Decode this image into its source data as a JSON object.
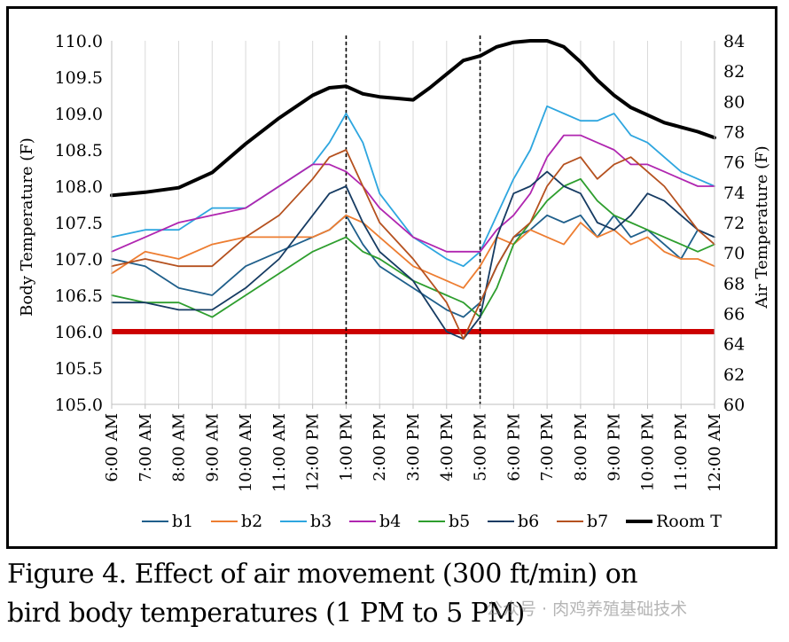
{
  "caption": {
    "line1": "Figure 4.  Effect of air movement (300 ft/min) on",
    "line2": "bird body temperatures (1 PM to 5 PM)"
  },
  "watermark": "公众号 · 肉鸡养殖基础技术",
  "chart_data": {
    "type": "line",
    "xlabel": "",
    "ylabel": "Body Temperature (F)",
    "y2label": "Air Temperature (F)",
    "x_ticks": [
      "6:00 AM",
      "7:00 AM",
      "8:00 AM",
      "9:00 AM",
      "10:00 AM",
      "11:00 AM",
      "12:00 PM",
      "1:00 PM",
      "2:00 PM",
      "3:00 PM",
      "4:00 PM",
      "5:00 PM",
      "6:00 PM",
      "7:00 PM",
      "8:00 PM",
      "9:00 PM",
      "10:00 PM",
      "11:00 PM",
      "12:00 AM"
    ],
    "x_hours": [
      6,
      7,
      8,
      9,
      10,
      11,
      12,
      13,
      14,
      15,
      16,
      17,
      18,
      19,
      20,
      21,
      22,
      23,
      24
    ],
    "ylim": [
      105.0,
      110.0
    ],
    "y_ticks": [
      "105.0",
      "105.5",
      "106.0",
      "106.5",
      "107.0",
      "107.5",
      "108.0",
      "108.5",
      "109.0",
      "109.5",
      "110.0"
    ],
    "y2lim": [
      60,
      84
    ],
    "y2_ticks": [
      "60",
      "62",
      "64",
      "66",
      "68",
      "70",
      "72",
      "74",
      "76",
      "78",
      "80",
      "82",
      "84"
    ],
    "grid": "vertical",
    "reference_line": {
      "value": 106.0,
      "color": "#cc0000"
    },
    "event_lines_hours": [
      13,
      17
    ],
    "series": [
      {
        "name": "b1",
        "color": "#1f5f8b",
        "axis": "left",
        "x": [
          6,
          7,
          8,
          9,
          10,
          11,
          12,
          12.5,
          13,
          13.5,
          14,
          15,
          16,
          16.5,
          17,
          17.5,
          18,
          18.5,
          19,
          19.5,
          20,
          20.5,
          21,
          21.5,
          22,
          22.5,
          23,
          23.5,
          24
        ],
        "y": [
          107.0,
          106.9,
          106.6,
          106.5,
          106.9,
          107.1,
          107.3,
          107.4,
          107.6,
          107.2,
          106.9,
          106.6,
          106.3,
          106.2,
          106.4,
          106.9,
          107.3,
          107.4,
          107.6,
          107.5,
          107.6,
          107.3,
          107.6,
          107.3,
          107.4,
          107.2,
          107.0,
          107.4,
          107.3
        ]
      },
      {
        "name": "b2",
        "color": "#ed7d31",
        "axis": "left",
        "x": [
          6,
          7,
          8,
          9,
          10,
          11,
          12,
          12.5,
          13,
          13.5,
          14,
          15,
          16,
          16.5,
          17,
          17.5,
          18,
          18.5,
          19,
          19.5,
          20,
          20.5,
          21,
          21.5,
          22,
          22.5,
          23,
          23.5,
          24
        ],
        "y": [
          106.8,
          107.1,
          107.0,
          107.2,
          107.3,
          107.3,
          107.3,
          107.4,
          107.6,
          107.5,
          107.3,
          106.9,
          106.7,
          106.6,
          106.9,
          107.3,
          107.2,
          107.4,
          107.3,
          107.2,
          107.5,
          107.3,
          107.4,
          107.2,
          107.3,
          107.1,
          107.0,
          107.0,
          106.9
        ]
      },
      {
        "name": "b3",
        "color": "#2ea6df",
        "axis": "left",
        "x": [
          6,
          7,
          8,
          9,
          10,
          11,
          12,
          12.5,
          13,
          13.5,
          14,
          15,
          16,
          16.5,
          17,
          17.5,
          18,
          18.5,
          19,
          19.5,
          20,
          20.5,
          21,
          21.5,
          22,
          22.5,
          23,
          23.5,
          24
        ],
        "y": [
          107.3,
          107.4,
          107.4,
          107.7,
          107.7,
          108.0,
          108.3,
          108.6,
          109.0,
          108.6,
          107.9,
          107.3,
          107.0,
          106.9,
          107.1,
          107.6,
          108.1,
          108.5,
          109.1,
          109.0,
          108.9,
          108.9,
          109.0,
          108.7,
          108.6,
          108.4,
          108.2,
          108.1,
          108.0
        ]
      },
      {
        "name": "b4",
        "color": "#b026b0",
        "axis": "left",
        "x": [
          6,
          7,
          8,
          9,
          10,
          11,
          12,
          12.5,
          13,
          13.5,
          14,
          15,
          16,
          16.5,
          17,
          17.5,
          18,
          18.5,
          19,
          19.5,
          20,
          20.5,
          21,
          21.5,
          22,
          22.5,
          23,
          23.5,
          24
        ],
        "y": [
          107.1,
          107.3,
          107.5,
          107.6,
          107.7,
          108.0,
          108.3,
          108.3,
          108.2,
          108.0,
          107.7,
          107.3,
          107.1,
          107.1,
          107.1,
          107.4,
          107.6,
          107.9,
          108.4,
          108.7,
          108.7,
          108.6,
          108.5,
          108.3,
          108.3,
          108.2,
          108.1,
          108.0,
          108.0
        ]
      },
      {
        "name": "b5",
        "color": "#2e9e2e",
        "axis": "left",
        "x": [
          6,
          7,
          8,
          9,
          10,
          11,
          12,
          12.5,
          13,
          13.5,
          14,
          15,
          16,
          16.5,
          17,
          17.5,
          18,
          18.5,
          19,
          19.5,
          20,
          20.5,
          21,
          21.5,
          22,
          22.5,
          23,
          23.5,
          24
        ],
        "y": [
          106.5,
          106.4,
          106.4,
          106.2,
          106.5,
          106.8,
          107.1,
          107.2,
          107.3,
          107.1,
          107.0,
          106.7,
          106.5,
          106.4,
          106.2,
          106.6,
          107.2,
          107.5,
          107.8,
          108.0,
          108.1,
          107.8,
          107.6,
          107.5,
          107.4,
          107.3,
          107.2,
          107.1,
          107.2
        ]
      },
      {
        "name": "b6",
        "color": "#163b62",
        "axis": "left",
        "x": [
          6,
          7,
          8,
          9,
          10,
          11,
          12,
          12.5,
          13,
          13.5,
          14,
          15,
          16,
          16.5,
          17,
          17.5,
          18,
          18.5,
          19,
          19.5,
          20,
          20.5,
          21,
          21.5,
          22,
          22.5,
          23,
          23.5,
          24
        ],
        "y": [
          106.4,
          106.4,
          106.3,
          106.3,
          106.6,
          107.0,
          107.6,
          107.9,
          108.0,
          107.5,
          107.1,
          106.7,
          106.0,
          105.9,
          106.2,
          107.3,
          107.9,
          108.0,
          108.2,
          108.0,
          107.9,
          107.5,
          107.4,
          107.6,
          107.9,
          107.8,
          107.6,
          107.4,
          107.3
        ]
      },
      {
        "name": "b7",
        "color": "#b5511f",
        "axis": "left",
        "x": [
          6,
          7,
          8,
          9,
          10,
          11,
          12,
          12.5,
          13,
          13.5,
          14,
          15,
          16,
          16.5,
          17,
          17.5,
          18,
          18.5,
          19,
          19.5,
          20,
          20.5,
          21,
          21.5,
          22,
          22.5,
          23,
          23.5,
          24
        ],
        "y": [
          106.9,
          107.0,
          106.9,
          106.9,
          107.3,
          107.6,
          108.1,
          108.4,
          108.5,
          108.0,
          107.5,
          107.0,
          106.4,
          105.9,
          106.4,
          106.9,
          107.3,
          107.5,
          108.0,
          108.3,
          108.4,
          108.1,
          108.3,
          108.4,
          108.2,
          108.0,
          107.7,
          107.4,
          107.2
        ]
      },
      {
        "name": "Room T",
        "color": "#000000",
        "axis": "right",
        "x": [
          6,
          7,
          8,
          9,
          10,
          11,
          12,
          12.5,
          13,
          13.5,
          14,
          14.5,
          15,
          15.5,
          16,
          16.5,
          17,
          17.5,
          18,
          18.5,
          19,
          19.5,
          20,
          20.5,
          21,
          21.5,
          22,
          22.5,
          23,
          23.5,
          24
        ],
        "y": [
          73.8,
          74.0,
          74.3,
          75.3,
          77.2,
          78.9,
          80.4,
          80.9,
          81.0,
          80.5,
          80.3,
          80.2,
          80.1,
          80.9,
          81.8,
          82.7,
          83.0,
          83.6,
          83.9,
          84.0,
          84.0,
          83.6,
          82.6,
          81.4,
          80.4,
          79.6,
          79.1,
          78.6,
          78.3,
          78.0,
          77.6
        ]
      }
    ]
  }
}
